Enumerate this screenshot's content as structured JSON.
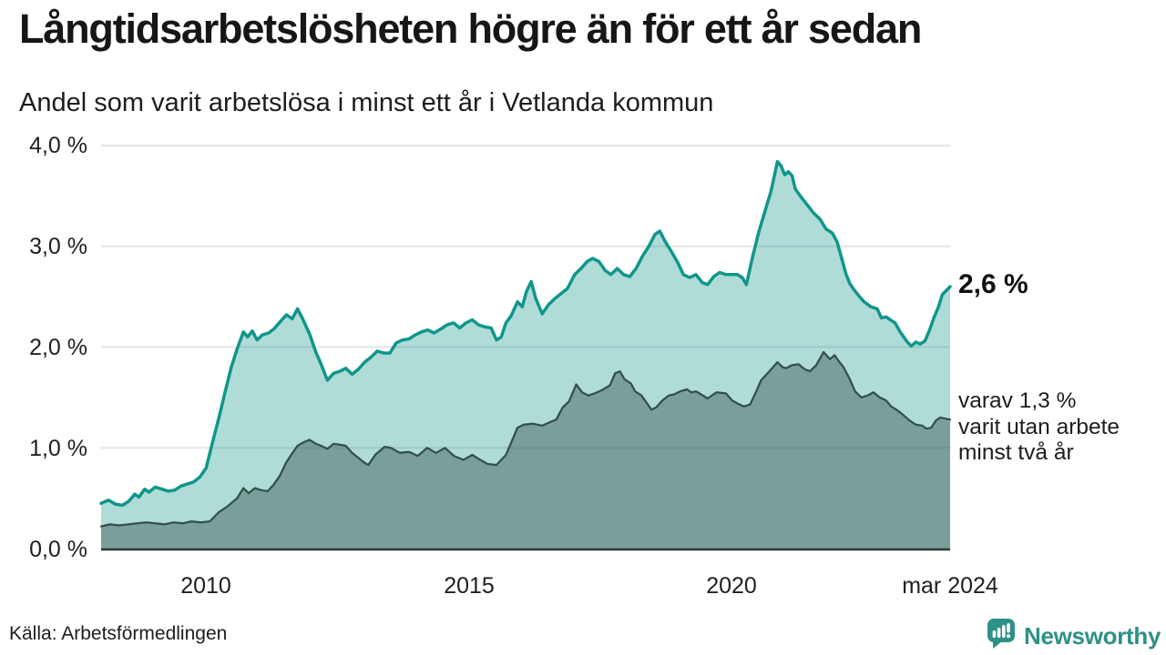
{
  "colors": {
    "accent_teal_line": "#10968a",
    "light_fill": "rgba(16,150,137,0.33)",
    "dark_line": "#344f49",
    "dark_fill": "rgba(52,79,73,0.44)",
    "gridline": "#e3e3e8",
    "baseline": "#2e3b38",
    "brand_teal": "#2e9086",
    "text_dark": "#161616"
  },
  "chart_data": {
    "type": "area",
    "title": "Långtidsarbetslösheten högre än för ett år sedan",
    "subtitle": "Andel som varit arbetslösa i minst ett år i Vetlanda kommun",
    "source": "Källa: Arbetsförmedlingen",
    "grid": true,
    "legend_position": "end-of-line annotations",
    "xlim": [
      2008.0,
      2024.17
    ],
    "ylim": [
      0,
      4
    ],
    "x_ticks": [
      {
        "label": "2010",
        "year": 2010
      },
      {
        "label": "2015",
        "year": 2015
      },
      {
        "label": "2020",
        "year": 2020
      },
      {
        "label": "mar 2024",
        "year": 2024.17
      }
    ],
    "y_ticks": [
      {
        "label": "4,0 %",
        "value": 4.0
      },
      {
        "label": "3,0 %",
        "value": 3.0
      },
      {
        "label": "2,0 %",
        "value": 2.0
      },
      {
        "label": "1,0 %",
        "value": 1.0
      },
      {
        "label": "0,0 %",
        "value": 0.0
      }
    ],
    "annotations": {
      "end_label_primary": "2,6 %",
      "end_label_secondary": [
        "varav 1,3 %",
        "varit utan arbete",
        "minst två år"
      ]
    },
    "series": [
      {
        "name": "Arbetslösa minst ett år",
        "end_value": 2.6,
        "points": [
          [
            2008.0,
            0.45
          ],
          [
            2008.14,
            0.48
          ],
          [
            2008.28,
            0.44
          ],
          [
            2008.41,
            0.43
          ],
          [
            2008.53,
            0.47
          ],
          [
            2008.64,
            0.54
          ],
          [
            2008.72,
            0.51
          ],
          [
            2008.83,
            0.59
          ],
          [
            2008.91,
            0.56
          ],
          [
            2009.03,
            0.61
          ],
          [
            2009.16,
            0.59
          ],
          [
            2009.28,
            0.57
          ],
          [
            2009.4,
            0.58
          ],
          [
            2009.52,
            0.62
          ],
          [
            2009.64,
            0.64
          ],
          [
            2009.76,
            0.66
          ],
          [
            2009.88,
            0.71
          ],
          [
            2010.0,
            0.8
          ],
          [
            2010.12,
            1.05
          ],
          [
            2010.24,
            1.29
          ],
          [
            2010.36,
            1.55
          ],
          [
            2010.48,
            1.8
          ],
          [
            2010.59,
            1.98
          ],
          [
            2010.71,
            2.15
          ],
          [
            2010.79,
            2.1
          ],
          [
            2010.88,
            2.16
          ],
          [
            2010.97,
            2.07
          ],
          [
            2011.07,
            2.12
          ],
          [
            2011.19,
            2.14
          ],
          [
            2011.29,
            2.18
          ],
          [
            2011.41,
            2.25
          ],
          [
            2011.53,
            2.32
          ],
          [
            2011.64,
            2.28
          ],
          [
            2011.74,
            2.38
          ],
          [
            2011.84,
            2.28
          ],
          [
            2011.97,
            2.13
          ],
          [
            2012.09,
            1.95
          ],
          [
            2012.19,
            1.83
          ],
          [
            2012.31,
            1.67
          ],
          [
            2012.43,
            1.74
          ],
          [
            2012.55,
            1.76
          ],
          [
            2012.66,
            1.79
          ],
          [
            2012.78,
            1.73
          ],
          [
            2012.9,
            1.78
          ],
          [
            2013.02,
            1.85
          ],
          [
            2013.14,
            1.9
          ],
          [
            2013.26,
            1.96
          ],
          [
            2013.38,
            1.94
          ],
          [
            2013.5,
            1.94
          ],
          [
            2013.62,
            2.04
          ],
          [
            2013.74,
            2.07
          ],
          [
            2013.86,
            2.08
          ],
          [
            2013.98,
            2.12
          ],
          [
            2014.1,
            2.15
          ],
          [
            2014.22,
            2.17
          ],
          [
            2014.34,
            2.14
          ],
          [
            2014.47,
            2.18
          ],
          [
            2014.59,
            2.22
          ],
          [
            2014.71,
            2.24
          ],
          [
            2014.83,
            2.19
          ],
          [
            2014.95,
            2.24
          ],
          [
            2015.07,
            2.27
          ],
          [
            2015.19,
            2.22
          ],
          [
            2015.31,
            2.2
          ],
          [
            2015.43,
            2.19
          ],
          [
            2015.53,
            2.07
          ],
          [
            2015.62,
            2.1
          ],
          [
            2015.71,
            2.24
          ],
          [
            2015.81,
            2.31
          ],
          [
            2015.93,
            2.45
          ],
          [
            2016.02,
            2.4
          ],
          [
            2016.1,
            2.55
          ],
          [
            2016.19,
            2.65
          ],
          [
            2016.28,
            2.48
          ],
          [
            2016.4,
            2.33
          ],
          [
            2016.52,
            2.42
          ],
          [
            2016.64,
            2.48
          ],
          [
            2016.76,
            2.53
          ],
          [
            2016.88,
            2.58
          ],
          [
            2017.02,
            2.72
          ],
          [
            2017.14,
            2.78
          ],
          [
            2017.26,
            2.85
          ],
          [
            2017.36,
            2.88
          ],
          [
            2017.48,
            2.85
          ],
          [
            2017.6,
            2.76
          ],
          [
            2017.71,
            2.72
          ],
          [
            2017.83,
            2.78
          ],
          [
            2017.95,
            2.72
          ],
          [
            2018.07,
            2.7
          ],
          [
            2018.19,
            2.78
          ],
          [
            2018.31,
            2.9
          ],
          [
            2018.43,
            3.0
          ],
          [
            2018.55,
            3.12
          ],
          [
            2018.64,
            3.15
          ],
          [
            2018.74,
            3.05
          ],
          [
            2018.86,
            2.95
          ],
          [
            2018.98,
            2.84
          ],
          [
            2019.09,
            2.72
          ],
          [
            2019.21,
            2.69
          ],
          [
            2019.33,
            2.72
          ],
          [
            2019.45,
            2.64
          ],
          [
            2019.55,
            2.62
          ],
          [
            2019.67,
            2.7
          ],
          [
            2019.78,
            2.74
          ],
          [
            2019.9,
            2.72
          ],
          [
            2020.02,
            2.72
          ],
          [
            2020.12,
            2.72
          ],
          [
            2020.21,
            2.69
          ],
          [
            2020.29,
            2.62
          ],
          [
            2020.41,
            2.9
          ],
          [
            2020.53,
            3.15
          ],
          [
            2020.64,
            3.34
          ],
          [
            2020.76,
            3.55
          ],
          [
            2020.88,
            3.84
          ],
          [
            2020.95,
            3.8
          ],
          [
            2021.02,
            3.71
          ],
          [
            2021.09,
            3.74
          ],
          [
            2021.16,
            3.7
          ],
          [
            2021.22,
            3.57
          ],
          [
            2021.33,
            3.49
          ],
          [
            2021.45,
            3.41
          ],
          [
            2021.57,
            3.33
          ],
          [
            2021.69,
            3.27
          ],
          [
            2021.81,
            3.17
          ],
          [
            2021.93,
            3.13
          ],
          [
            2022.02,
            3.04
          ],
          [
            2022.1,
            2.89
          ],
          [
            2022.19,
            2.72
          ],
          [
            2022.26,
            2.63
          ],
          [
            2022.34,
            2.57
          ],
          [
            2022.43,
            2.51
          ],
          [
            2022.53,
            2.45
          ],
          [
            2022.66,
            2.4
          ],
          [
            2022.78,
            2.38
          ],
          [
            2022.86,
            2.29
          ],
          [
            2022.95,
            2.3
          ],
          [
            2023.03,
            2.27
          ],
          [
            2023.12,
            2.24
          ],
          [
            2023.22,
            2.15
          ],
          [
            2023.34,
            2.06
          ],
          [
            2023.43,
            2.01
          ],
          [
            2023.52,
            2.05
          ],
          [
            2023.6,
            2.03
          ],
          [
            2023.69,
            2.06
          ],
          [
            2023.78,
            2.17
          ],
          [
            2023.86,
            2.29
          ],
          [
            2023.95,
            2.4
          ],
          [
            2024.02,
            2.52
          ],
          [
            2024.17,
            2.6
          ]
        ]
      },
      {
        "name": "varav utan arbete minst två år",
        "end_value": 1.3,
        "points": [
          [
            2008.0,
            0.22
          ],
          [
            2008.17,
            0.24
          ],
          [
            2008.34,
            0.23
          ],
          [
            2008.52,
            0.24
          ],
          [
            2008.69,
            0.25
          ],
          [
            2008.86,
            0.26
          ],
          [
            2009.03,
            0.25
          ],
          [
            2009.21,
            0.24
          ],
          [
            2009.38,
            0.26
          ],
          [
            2009.55,
            0.25
          ],
          [
            2009.72,
            0.27
          ],
          [
            2009.9,
            0.26
          ],
          [
            2010.07,
            0.27
          ],
          [
            2010.24,
            0.36
          ],
          [
            2010.41,
            0.42
          ],
          [
            2010.59,
            0.5
          ],
          [
            2010.71,
            0.6
          ],
          [
            2010.81,
            0.55
          ],
          [
            2010.93,
            0.6
          ],
          [
            2011.05,
            0.58
          ],
          [
            2011.17,
            0.57
          ],
          [
            2011.28,
            0.63
          ],
          [
            2011.4,
            0.72
          ],
          [
            2011.52,
            0.85
          ],
          [
            2011.62,
            0.93
          ],
          [
            2011.74,
            1.02
          ],
          [
            2011.84,
            1.05
          ],
          [
            2011.97,
            1.08
          ],
          [
            2012.09,
            1.04
          ],
          [
            2012.19,
            1.02
          ],
          [
            2012.31,
            0.99
          ],
          [
            2012.43,
            1.04
          ],
          [
            2012.55,
            1.03
          ],
          [
            2012.66,
            1.02
          ],
          [
            2012.78,
            0.95
          ],
          [
            2012.9,
            0.9
          ],
          [
            2013.02,
            0.85
          ],
          [
            2013.09,
            0.83
          ],
          [
            2013.22,
            0.93
          ],
          [
            2013.4,
            1.01
          ],
          [
            2013.52,
            1.0
          ],
          [
            2013.69,
            0.95
          ],
          [
            2013.86,
            0.96
          ],
          [
            2014.03,
            0.92
          ],
          [
            2014.21,
            1.0
          ],
          [
            2014.38,
            0.95
          ],
          [
            2014.55,
            1.0
          ],
          [
            2014.72,
            0.92
          ],
          [
            2014.9,
            0.88
          ],
          [
            2015.07,
            0.93
          ],
          [
            2015.19,
            0.89
          ],
          [
            2015.36,
            0.84
          ],
          [
            2015.53,
            0.83
          ],
          [
            2015.71,
            0.93
          ],
          [
            2015.81,
            1.05
          ],
          [
            2015.93,
            1.2
          ],
          [
            2016.05,
            1.23
          ],
          [
            2016.22,
            1.24
          ],
          [
            2016.4,
            1.22
          ],
          [
            2016.57,
            1.26
          ],
          [
            2016.67,
            1.28
          ],
          [
            2016.79,
            1.4
          ],
          [
            2016.91,
            1.46
          ],
          [
            2017.05,
            1.63
          ],
          [
            2017.16,
            1.55
          ],
          [
            2017.28,
            1.52
          ],
          [
            2017.4,
            1.54
          ],
          [
            2017.53,
            1.57
          ],
          [
            2017.69,
            1.62
          ],
          [
            2017.79,
            1.74
          ],
          [
            2017.88,
            1.76
          ],
          [
            2017.97,
            1.68
          ],
          [
            2018.09,
            1.64
          ],
          [
            2018.17,
            1.56
          ],
          [
            2018.29,
            1.52
          ],
          [
            2018.4,
            1.44
          ],
          [
            2018.48,
            1.38
          ],
          [
            2018.57,
            1.4
          ],
          [
            2018.69,
            1.47
          ],
          [
            2018.81,
            1.52
          ],
          [
            2018.91,
            1.53
          ],
          [
            2019.03,
            1.56
          ],
          [
            2019.16,
            1.58
          ],
          [
            2019.24,
            1.55
          ],
          [
            2019.33,
            1.56
          ],
          [
            2019.43,
            1.53
          ],
          [
            2019.55,
            1.49
          ],
          [
            2019.72,
            1.55
          ],
          [
            2019.9,
            1.54
          ],
          [
            2020.02,
            1.47
          ],
          [
            2020.12,
            1.44
          ],
          [
            2020.24,
            1.41
          ],
          [
            2020.36,
            1.43
          ],
          [
            2020.47,
            1.55
          ],
          [
            2020.57,
            1.67
          ],
          [
            2020.71,
            1.75
          ],
          [
            2020.88,
            1.85
          ],
          [
            2020.98,
            1.8
          ],
          [
            2021.05,
            1.79
          ],
          [
            2021.16,
            1.82
          ],
          [
            2021.28,
            1.83
          ],
          [
            2021.4,
            1.78
          ],
          [
            2021.5,
            1.76
          ],
          [
            2021.62,
            1.82
          ],
          [
            2021.76,
            1.95
          ],
          [
            2021.88,
            1.88
          ],
          [
            2021.97,
            1.92
          ],
          [
            2022.05,
            1.86
          ],
          [
            2022.14,
            1.8
          ],
          [
            2022.26,
            1.68
          ],
          [
            2022.36,
            1.56
          ],
          [
            2022.48,
            1.5
          ],
          [
            2022.6,
            1.52
          ],
          [
            2022.71,
            1.55
          ],
          [
            2022.83,
            1.5
          ],
          [
            2022.95,
            1.47
          ],
          [
            2023.05,
            1.41
          ],
          [
            2023.17,
            1.37
          ],
          [
            2023.29,
            1.32
          ],
          [
            2023.4,
            1.27
          ],
          [
            2023.52,
            1.23
          ],
          [
            2023.64,
            1.22
          ],
          [
            2023.72,
            1.19
          ],
          [
            2023.81,
            1.2
          ],
          [
            2023.9,
            1.27
          ],
          [
            2023.98,
            1.3
          ],
          [
            2024.17,
            1.28
          ]
        ]
      }
    ]
  },
  "footer": {
    "brand": "Newsworthy"
  }
}
